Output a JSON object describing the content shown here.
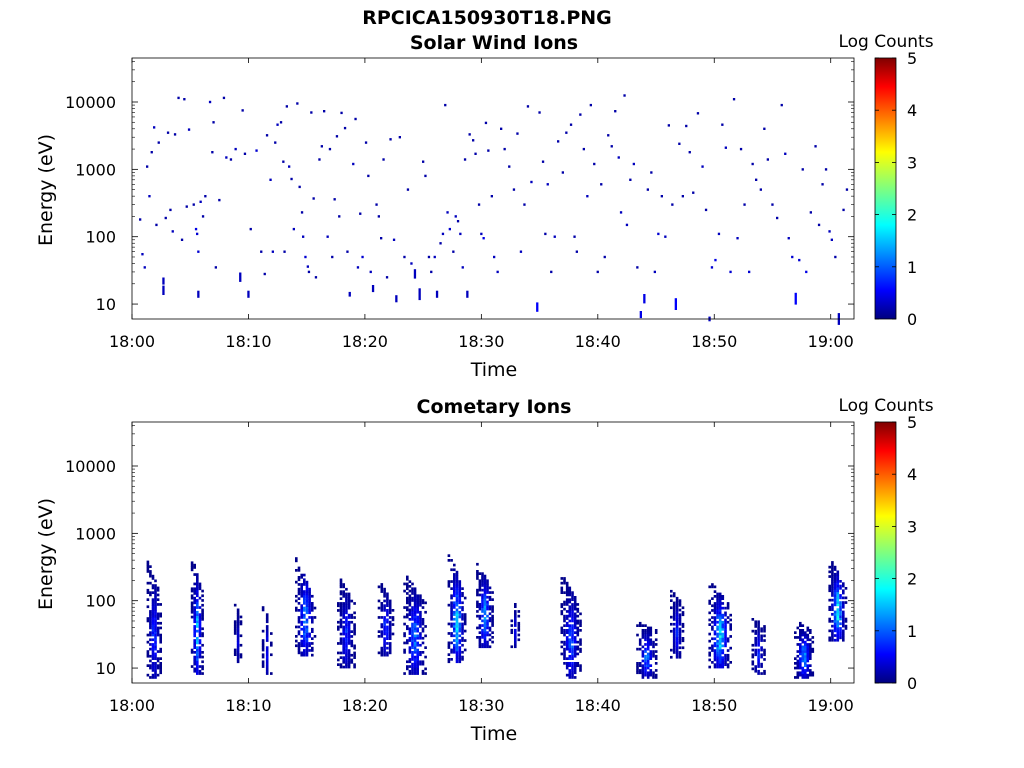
{
  "figure": {
    "title": "RPCICA150930T18.PNG"
  },
  "chart_data": [
    {
      "type": "heatmap",
      "title": "Solar Wind Ions",
      "xlabel": "Time",
      "ylabel": "Energy (eV)",
      "x_ticks": [
        "18:00",
        "18:10",
        "18:20",
        "18:30",
        "18:40",
        "18:50",
        "19:00"
      ],
      "x_range_minutes": [
        0,
        62
      ],
      "y_ticks": [
        "10",
        "100",
        "1000",
        "10000"
      ],
      "y_scale": "log",
      "y_range": [
        6,
        45000
      ],
      "colorbar": {
        "label": "Log Counts",
        "range": [
          0,
          5
        ],
        "ticks": [
          "0",
          "1",
          "2",
          "3",
          "4",
          "5"
        ],
        "colormap": "jet"
      },
      "grid": false,
      "points": [
        [
          0.6,
          180,
          0.2
        ],
        [
          0.8,
          55,
          0.3
        ],
        [
          1.0,
          35,
          0.3
        ],
        [
          1.2,
          1100,
          0.2
        ],
        [
          1.4,
          400,
          0.3
        ],
        [
          1.6,
          1800,
          0.2
        ],
        [
          1.8,
          4200,
          0.3
        ],
        [
          2.0,
          150,
          0.2
        ],
        [
          2.2,
          2500,
          0.2
        ],
        [
          2.6,
          22,
          0.3
        ],
        [
          2.6,
          16,
          0.3
        ],
        [
          2.8,
          190,
          0.2
        ],
        [
          3.0,
          3500,
          0.2
        ],
        [
          3.2,
          250,
          0.2
        ],
        [
          3.4,
          120,
          0.3
        ],
        [
          3.6,
          3300,
          0.2
        ],
        [
          3.9,
          11500,
          0.2
        ],
        [
          4.2,
          90,
          0.2
        ],
        [
          4.4,
          11000,
          0.2
        ],
        [
          4.6,
          280,
          0.2
        ],
        [
          4.8,
          3900,
          0.3
        ],
        [
          5.2,
          300,
          0.2
        ],
        [
          5.4,
          130,
          0.5
        ],
        [
          5.5,
          110,
          0.4
        ],
        [
          5.6,
          60,
          0.4
        ],
        [
          5.6,
          14,
          0.3
        ],
        [
          5.8,
          330,
          0.3
        ],
        [
          6.0,
          200,
          0.2
        ],
        [
          6.2,
          400,
          0.2
        ],
        [
          6.6,
          10000,
          0.3
        ],
        [
          6.8,
          1800,
          0.2
        ],
        [
          6.9,
          5000,
          0.2
        ],
        [
          7.1,
          35,
          0.2
        ],
        [
          7.4,
          350,
          0.2
        ],
        [
          7.8,
          11500,
          0.2
        ],
        [
          8.0,
          1500,
          0.3
        ],
        [
          8.4,
          1400,
          0.2
        ],
        [
          8.8,
          2000,
          0.3
        ],
        [
          9.2,
          25,
          0.3
        ],
        [
          9.4,
          7500,
          0.2
        ],
        [
          9.6,
          1700,
          0.2
        ],
        [
          9.9,
          14,
          0.3
        ],
        [
          10.1,
          130,
          0.2
        ],
        [
          10.6,
          1900,
          0.4
        ],
        [
          11.0,
          60,
          0.2
        ],
        [
          11.3,
          28,
          0.2
        ],
        [
          11.5,
          3200,
          0.2
        ],
        [
          11.8,
          700,
          0.3
        ],
        [
          12.0,
          60,
          0.3
        ],
        [
          12.2,
          2500,
          0.2
        ],
        [
          12.4,
          4600,
          0.3
        ],
        [
          12.7,
          5000,
          0.2
        ],
        [
          12.9,
          1300,
          0.2
        ],
        [
          13.0,
          60,
          0.2
        ],
        [
          13.2,
          8600,
          0.2
        ],
        [
          13.4,
          1100,
          0.3
        ],
        [
          13.6,
          720,
          0.2
        ],
        [
          13.8,
          130,
          0.3
        ],
        [
          14.1,
          9500,
          0.2
        ],
        [
          14.3,
          550,
          0.2
        ],
        [
          14.5,
          230,
          0.2
        ],
        [
          14.6,
          100,
          0.3
        ],
        [
          14.8,
          50,
          0.4
        ],
        [
          15.0,
          36,
          0.3
        ],
        [
          15.1,
          30,
          0.2
        ],
        [
          15.3,
          7000,
          0.2
        ],
        [
          15.5,
          370,
          0.2
        ],
        [
          15.7,
          25,
          0.2
        ],
        [
          16.0,
          1400,
          0.2
        ],
        [
          16.2,
          2200,
          0.2
        ],
        [
          16.4,
          7300,
          0.2
        ],
        [
          16.7,
          100,
          0.3
        ],
        [
          16.9,
          2000,
          0.2
        ],
        [
          17.1,
          50,
          0.2
        ],
        [
          17.3,
          360,
          0.2
        ],
        [
          17.5,
          3100,
          0.2
        ],
        [
          17.7,
          200,
          0.2
        ],
        [
          17.9,
          6900,
          0.2
        ],
        [
          18.2,
          4100,
          0.2
        ],
        [
          18.4,
          60,
          0.2
        ],
        [
          18.6,
          14,
          0.3
        ],
        [
          18.9,
          1200,
          0.3
        ],
        [
          19.1,
          5600,
          0.2
        ],
        [
          19.3,
          35,
          0.3
        ],
        [
          19.5,
          220,
          0.2
        ],
        [
          19.7,
          50,
          0.4
        ],
        [
          20.0,
          2500,
          0.2
        ],
        [
          20.2,
          800,
          0.2
        ],
        [
          20.4,
          30,
          0.3
        ],
        [
          20.6,
          17,
          0.3
        ],
        [
          20.9,
          300,
          0.2
        ],
        [
          21.1,
          200,
          0.2
        ],
        [
          21.3,
          95,
          0.2
        ],
        [
          21.5,
          1400,
          0.2
        ],
        [
          21.8,
          25,
          0.2
        ],
        [
          22.1,
          2800,
          0.2
        ],
        [
          22.4,
          90,
          0.3
        ],
        [
          22.6,
          12,
          0.3
        ],
        [
          22.9,
          3000,
          0.2
        ],
        [
          23.3,
          50,
          0.2
        ],
        [
          23.6,
          500,
          0.2
        ],
        [
          23.9,
          40,
          0.3
        ],
        [
          24.2,
          28,
          0.3
        ],
        [
          24.6,
          14,
          0.3
        ],
        [
          24.9,
          1300,
          0.2
        ],
        [
          25.1,
          800,
          0.2
        ],
        [
          25.4,
          50,
          0.2
        ],
        [
          25.6,
          30,
          0.2
        ],
        [
          25.9,
          50,
          0.3
        ],
        [
          26.1,
          14,
          0.3
        ],
        [
          26.4,
          80,
          0.2
        ],
        [
          26.6,
          110,
          0.3
        ],
        [
          26.8,
          9000,
          0.2
        ],
        [
          27.0,
          230,
          0.3
        ],
        [
          27.2,
          130,
          0.4
        ],
        [
          27.5,
          60,
          0.2
        ],
        [
          27.7,
          200,
          0.3
        ],
        [
          27.9,
          170,
          0.2
        ],
        [
          28.1,
          110,
          0.3
        ],
        [
          28.3,
          35,
          0.3
        ],
        [
          28.5,
          1400,
          0.2
        ],
        [
          28.7,
          14,
          0.3
        ],
        [
          28.9,
          3300,
          0.2
        ],
        [
          29.2,
          2700,
          0.2
        ],
        [
          29.4,
          1700,
          0.2
        ],
        [
          29.7,
          300,
          0.2
        ],
        [
          29.9,
          110,
          0.3
        ],
        [
          30.1,
          95,
          0.5
        ],
        [
          30.3,
          4900,
          0.2
        ],
        [
          30.5,
          1900,
          0.2
        ],
        [
          30.8,
          400,
          0.2
        ],
        [
          31.0,
          50,
          0.3
        ],
        [
          31.3,
          30,
          0.3
        ],
        [
          31.6,
          4000,
          0.2
        ],
        [
          31.9,
          2000,
          0.2
        ],
        [
          32.3,
          1100,
          0.2
        ],
        [
          32.7,
          500,
          0.2
        ],
        [
          33.0,
          3400,
          0.2
        ],
        [
          33.3,
          60,
          0.3
        ],
        [
          33.6,
          300,
          0.2
        ],
        [
          33.9,
          8600,
          0.2
        ],
        [
          34.2,
          650,
          0.3
        ],
        [
          34.7,
          9,
          0.6
        ],
        [
          34.9,
          7000,
          0.2
        ],
        [
          35.2,
          1300,
          0.2
        ],
        [
          35.4,
          110,
          0.2
        ],
        [
          35.6,
          600,
          0.3
        ],
        [
          35.9,
          30,
          0.2
        ],
        [
          36.2,
          100,
          0.3
        ],
        [
          36.5,
          2600,
          0.2
        ],
        [
          36.9,
          900,
          0.2
        ],
        [
          37.2,
          3500,
          0.2
        ],
        [
          37.6,
          4600,
          0.2
        ],
        [
          37.9,
          100,
          0.2
        ],
        [
          38.1,
          60,
          0.2
        ],
        [
          38.4,
          6500,
          0.2
        ],
        [
          38.7,
          2000,
          0.2
        ],
        [
          39.0,
          400,
          0.3
        ],
        [
          39.3,
          9000,
          0.2
        ],
        [
          39.6,
          1200,
          0.2
        ],
        [
          39.9,
          30,
          0.2
        ],
        [
          40.2,
          600,
          0.2
        ],
        [
          40.5,
          50,
          0.2
        ],
        [
          40.8,
          3200,
          0.2
        ],
        [
          41.1,
          2200,
          0.2
        ],
        [
          41.4,
          7300,
          0.2
        ],
        [
          41.7,
          1500,
          0.3
        ],
        [
          41.9,
          230,
          0.3
        ],
        [
          42.2,
          12500,
          0.2
        ],
        [
          42.4,
          150,
          0.3
        ],
        [
          42.7,
          700,
          0.2
        ],
        [
          43.0,
          1200,
          0.3
        ],
        [
          43.3,
          35,
          0.2
        ],
        [
          43.6,
          7,
          0.5
        ],
        [
          43.9,
          12,
          0.5
        ],
        [
          44.2,
          500,
          0.2
        ],
        [
          44.5,
          900,
          0.2
        ],
        [
          44.8,
          30,
          0.3
        ],
        [
          45.1,
          110,
          0.4
        ],
        [
          45.4,
          400,
          0.2
        ],
        [
          45.7,
          100,
          0.3
        ],
        [
          46.0,
          4500,
          0.2
        ],
        [
          46.3,
          300,
          0.2
        ],
        [
          46.6,
          10,
          0.6
        ],
        [
          46.9,
          2400,
          0.2
        ],
        [
          47.2,
          400,
          0.2
        ],
        [
          47.5,
          4400,
          0.2
        ],
        [
          47.8,
          1800,
          0.2
        ],
        [
          48.1,
          450,
          0.2
        ],
        [
          48.5,
          6800,
          0.2
        ],
        [
          48.9,
          1100,
          0.3
        ],
        [
          49.2,
          250,
          0.2
        ],
        [
          49.5,
          6,
          0.3
        ],
        [
          49.7,
          35,
          0.4
        ],
        [
          50.0,
          45,
          0.5
        ],
        [
          50.3,
          110,
          0.3
        ],
        [
          50.6,
          4600,
          0.2
        ],
        [
          50.9,
          2100,
          0.3
        ],
        [
          51.3,
          30,
          0.4
        ],
        [
          51.6,
          11000,
          0.2
        ],
        [
          51.9,
          95,
          0.3
        ],
        [
          52.2,
          2000,
          0.2
        ],
        [
          52.5,
          300,
          0.2
        ],
        [
          52.9,
          30,
          0.4
        ],
        [
          53.2,
          1200,
          0.2
        ],
        [
          53.5,
          700,
          0.2
        ],
        [
          53.9,
          500,
          0.2
        ],
        [
          54.2,
          4000,
          0.2
        ],
        [
          54.5,
          1400,
          0.2
        ],
        [
          54.9,
          300,
          0.2
        ],
        [
          55.3,
          190,
          0.2
        ],
        [
          55.7,
          9000,
          0.2
        ],
        [
          56.0,
          1700,
          0.3
        ],
        [
          56.3,
          95,
          0.3
        ],
        [
          56.6,
          50,
          0.4
        ],
        [
          56.9,
          12,
          0.6
        ],
        [
          57.2,
          45,
          0.4
        ],
        [
          57.5,
          1000,
          0.2
        ],
        [
          57.8,
          30,
          0.5
        ],
        [
          58.2,
          230,
          0.2
        ],
        [
          58.6,
          2200,
          0.2
        ],
        [
          58.9,
          150,
          0.2
        ],
        [
          59.2,
          600,
          0.2
        ],
        [
          59.5,
          1000,
          0.2
        ],
        [
          59.8,
          120,
          0.3
        ],
        [
          60.0,
          90,
          0.3
        ],
        [
          60.3,
          50,
          0.2
        ],
        [
          60.6,
          6,
          0.3
        ],
        [
          61.0,
          250,
          0.2
        ],
        [
          61.3,
          500,
          0.2
        ]
      ]
    },
    {
      "type": "heatmap",
      "title": "Cometary Ions",
      "xlabel": "Time",
      "ylabel": "Energy (eV)",
      "x_ticks": [
        "18:00",
        "18:10",
        "18:20",
        "18:30",
        "18:40",
        "18:50",
        "19:00"
      ],
      "x_range_minutes": [
        0,
        62
      ],
      "y_ticks": [
        "10",
        "100",
        "1000",
        "10000"
      ],
      "y_scale": "log",
      "y_range": [
        6,
        45000
      ],
      "colorbar": {
        "label": "Log Counts",
        "range": [
          0,
          5
        ],
        "ticks": [
          "0",
          "1",
          "2",
          "3",
          "4",
          "5"
        ],
        "colormap": "jet"
      },
      "grid": false,
      "bursts": [
        {
          "t": 1.8,
          "w": 1.1,
          "emin": 7,
          "emax": 400,
          "peak": 0.9,
          "tilt": 0.5
        },
        {
          "t": 5.5,
          "w": 0.9,
          "emin": 8,
          "emax": 450,
          "peak": 1.7,
          "tilt": 0.5
        },
        {
          "t": 9.0,
          "w": 0.5,
          "emin": 12,
          "emax": 90,
          "peak": 0.4,
          "tilt": 0.3
        },
        {
          "t": 11.5,
          "w": 0.7,
          "emin": 8,
          "emax": 80,
          "peak": 0.6,
          "tilt": 0.3
        },
        {
          "t": 14.8,
          "w": 1.6,
          "emin": 15,
          "emax": 520,
          "peak": 1.4,
          "tilt": 0.8
        },
        {
          "t": 18.3,
          "w": 1.4,
          "emin": 10,
          "emax": 250,
          "peak": 0.8,
          "tilt": 0.5
        },
        {
          "t": 21.7,
          "w": 1.2,
          "emin": 15,
          "emax": 200,
          "peak": 0.9,
          "tilt": 0.5
        },
        {
          "t": 24.2,
          "w": 1.8,
          "emin": 8,
          "emax": 260,
          "peak": 1.2,
          "tilt": 0.5
        },
        {
          "t": 27.8,
          "w": 1.4,
          "emin": 12,
          "emax": 520,
          "peak": 1.8,
          "tilt": 0.6
        },
        {
          "t": 30.2,
          "w": 1.3,
          "emin": 20,
          "emax": 400,
          "peak": 1.5,
          "tilt": 0.6
        },
        {
          "t": 32.8,
          "w": 0.6,
          "emin": 20,
          "emax": 100,
          "peak": 0.5,
          "tilt": 0.3
        },
        {
          "t": 37.6,
          "w": 1.6,
          "emin": 7,
          "emax": 250,
          "peak": 1.1,
          "tilt": 0.5
        },
        {
          "t": 44.1,
          "w": 1.6,
          "emin": 7,
          "emax": 50,
          "peak": 1.2,
          "tilt": 0.3
        },
        {
          "t": 46.7,
          "w": 1.0,
          "emin": 14,
          "emax": 150,
          "peak": 0.8,
          "tilt": 0.4
        },
        {
          "t": 50.4,
          "w": 1.8,
          "emin": 10,
          "emax": 200,
          "peak": 1.9,
          "tilt": 0.5
        },
        {
          "t": 53.7,
          "w": 1.0,
          "emin": 8,
          "emax": 60,
          "peak": 0.8,
          "tilt": 0.3
        },
        {
          "t": 57.6,
          "w": 1.5,
          "emin": 7,
          "emax": 50,
          "peak": 1.5,
          "tilt": 0.3
        },
        {
          "t": 60.5,
          "w": 1.4,
          "emin": 25,
          "emax": 450,
          "peak": 2.0,
          "tilt": 0.6
        }
      ]
    }
  ]
}
